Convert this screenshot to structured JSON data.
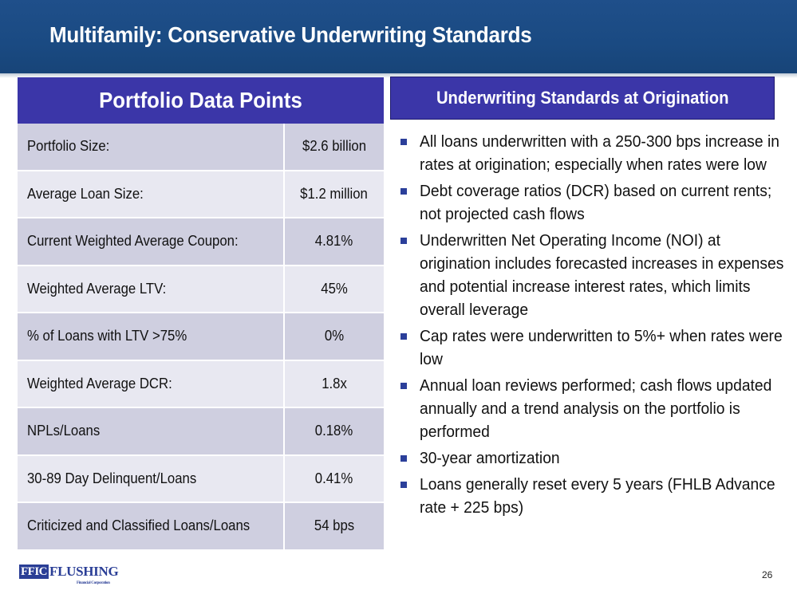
{
  "header": {
    "title": "Multifamily: Conservative Underwriting Standards"
  },
  "left_panel": {
    "title": "Portfolio Data Points",
    "rows": [
      {
        "label": "Portfolio Size:",
        "value": "$2.6 billion"
      },
      {
        "label": "Average Loan Size:",
        "value": "$1.2 million"
      },
      {
        "label": "Current Weighted Average Coupon:",
        "value": "4.81%"
      },
      {
        "label": "Weighted Average LTV:",
        "value": "45%"
      },
      {
        "label": "% of Loans with LTV >75%",
        "value": "0%"
      },
      {
        "label": "Weighted Average DCR:",
        "value": "1.8x"
      },
      {
        "label": "NPLs/Loans",
        "value": "0.18%"
      },
      {
        "label": "30-89 Day Delinquent/Loans",
        "value": "0.41%"
      },
      {
        "label": "Criticized and Classified Loans/Loans",
        "value": "54 bps"
      }
    ]
  },
  "right_panel": {
    "title": "Underwriting Standards at Origination",
    "bullets": [
      "All loans underwritten with a 250-300 bps increase in rates at origination; especially when rates were low",
      "Debt coverage ratios (DCR) based on current rents; not projected cash flows",
      "Underwritten Net Operating Income (NOI) at origination includes forecasted increases in expenses and potential increase interest rates, which limits overall leverage",
      "Cap rates were underwritten to 5%+ when rates were low",
      "Annual loan reviews performed; cash flows updated annually and a trend analysis on the portfolio is performed",
      "30-year amortization",
      "Loans generally reset every 5 years (FHLB Advance rate + 225 bps)"
    ]
  },
  "footer": {
    "logo_ffic": "FFIC",
    "logo_word": "FLUSHING",
    "logo_sub": "Financial Corporation",
    "page_number": "26"
  },
  "colors": {
    "header_blue": "#1a4a82",
    "panel_header": "#3b36a8",
    "row_dark": "#cfcfe0",
    "row_light": "#e8e8f1",
    "bullet": "#2b3f9a"
  },
  "icons": {
    "bullet": "square-bullet-icon",
    "logo": "flushing-logo"
  }
}
